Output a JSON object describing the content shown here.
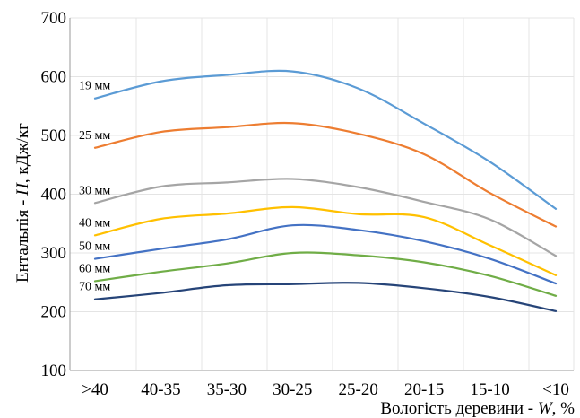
{
  "chart_data": {
    "type": "line",
    "categories": [
      ">40",
      "40-35",
      "35-30",
      "30-25",
      "25-20",
      "20-15",
      "15-10",
      "<10"
    ],
    "ylabel": "Ентальпія - H, кДж/кг",
    "ylabel_parts": [
      "Ентальпія - ",
      "H",
      ", кДж/кг"
    ],
    "xlabel": "Вологість деревини - W, %",
    "xlabel_parts": [
      "Вологість деревини - ",
      "W",
      ", %"
    ],
    "ylim": [
      100,
      700
    ],
    "yticks": [
      "100",
      "200",
      "300",
      "400",
      "500",
      "600",
      "700"
    ],
    "grid": true,
    "legend": "inline labels at left",
    "series": [
      {
        "name": "19 мм",
        "color": "#5b9bd5",
        "values": [
          563,
          592,
          603,
          609,
          580,
          520,
          455,
          375
        ]
      },
      {
        "name": "25 мм",
        "color": "#ed7d31",
        "values": [
          479,
          506,
          514,
          521,
          503,
          468,
          402,
          345
        ]
      },
      {
        "name": "30 мм",
        "color": "#a5a5a5",
        "values": [
          385,
          413,
          420,
          426,
          412,
          387,
          357,
          295
        ]
      },
      {
        "name": "40 мм",
        "color": "#ffc000",
        "values": [
          330,
          358,
          367,
          378,
          366,
          361,
          313,
          262
        ]
      },
      {
        "name": "50 мм",
        "color": "#4472c4",
        "values": [
          290,
          307,
          323,
          347,
          339,
          320,
          290,
          248
        ]
      },
      {
        "name": "60 мм",
        "color": "#70ad47",
        "values": [
          252,
          268,
          282,
          300,
          296,
          284,
          261,
          227
        ]
      },
      {
        "name": "70 мм",
        "color": "#264478",
        "values": [
          221,
          232,
          245,
          247,
          249,
          240,
          225,
          201
        ]
      }
    ]
  }
}
